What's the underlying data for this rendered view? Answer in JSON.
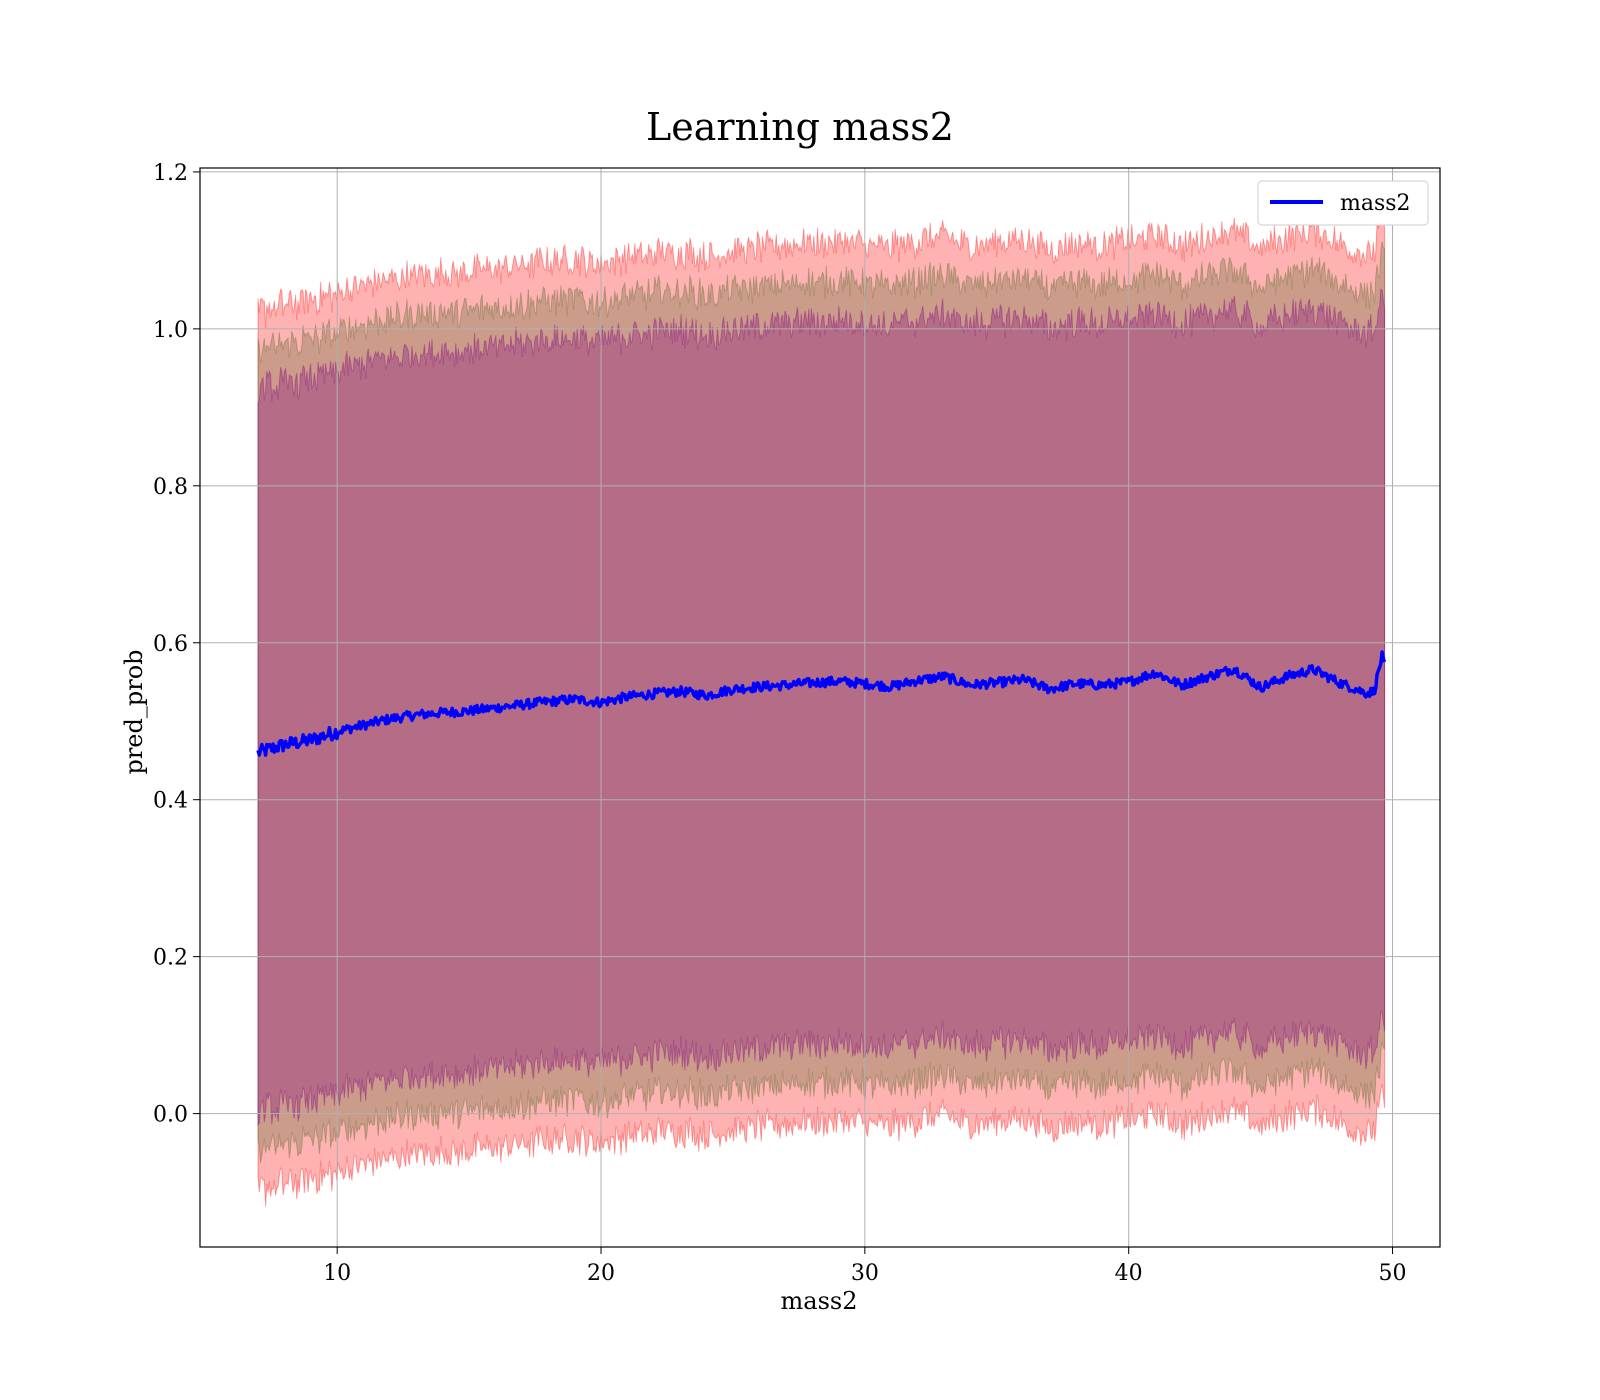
{
  "chart_data": {
    "type": "line",
    "title": "Learning mass2",
    "xlabel": "mass2",
    "ylabel": "pred_prob",
    "xlim": [
      4.8,
      51.8
    ],
    "ylim": [
      -0.17,
      1.205
    ],
    "x_ticks": [
      10,
      20,
      30,
      40,
      50
    ],
    "y_ticks": [
      0.0,
      0.2,
      0.4,
      0.6,
      0.8,
      1.0,
      1.2
    ],
    "x_tick_labels": [
      "10",
      "20",
      "30",
      "40",
      "50"
    ],
    "y_tick_labels": [
      "0.0",
      "0.2",
      "0.4",
      "0.6",
      "0.8",
      "1.0",
      "1.2"
    ],
    "grid": true,
    "legend": {
      "position": "top-right",
      "entries": [
        "mass2"
      ]
    },
    "series": [
      {
        "name": "mass2",
        "color": "#0000ff",
        "x": [
          7.0,
          8.0,
          9.0,
          10.0,
          11.0,
          12.0,
          13.0,
          14.0,
          15.0,
          16.0,
          17.0,
          18.0,
          19.0,
          20.0,
          21.0,
          22.0,
          23.0,
          24.0,
          25.0,
          26.0,
          27.0,
          28.0,
          29.0,
          30.0,
          31.0,
          32.0,
          33.0,
          34.0,
          35.0,
          36.0,
          37.0,
          38.0,
          39.0,
          40.0,
          41.0,
          42.0,
          43.0,
          44.0,
          45.0,
          46.0,
          47.0,
          48.0,
          49.0,
          49.3,
          49.6,
          49.7
        ],
        "y": [
          0.46,
          0.47,
          0.476,
          0.487,
          0.495,
          0.503,
          0.508,
          0.511,
          0.513,
          0.517,
          0.521,
          0.525,
          0.528,
          0.524,
          0.531,
          0.535,
          0.538,
          0.533,
          0.541,
          0.544,
          0.546,
          0.549,
          0.551,
          0.548,
          0.544,
          0.552,
          0.557,
          0.546,
          0.549,
          0.553,
          0.541,
          0.548,
          0.546,
          0.55,
          0.562,
          0.546,
          0.557,
          0.567,
          0.543,
          0.557,
          0.566,
          0.549,
          0.536,
          0.538,
          0.583,
          0.57
        ]
      }
    ],
    "bands": [
      {
        "color": "#ff0000",
        "alpha": 0.3,
        "half_width": 0.56
      },
      {
        "color": "#556b2f",
        "alpha": 0.3,
        "half_width": 0.51
      },
      {
        "color": "#800080",
        "alpha": 0.3,
        "half_width": 0.46
      }
    ]
  }
}
